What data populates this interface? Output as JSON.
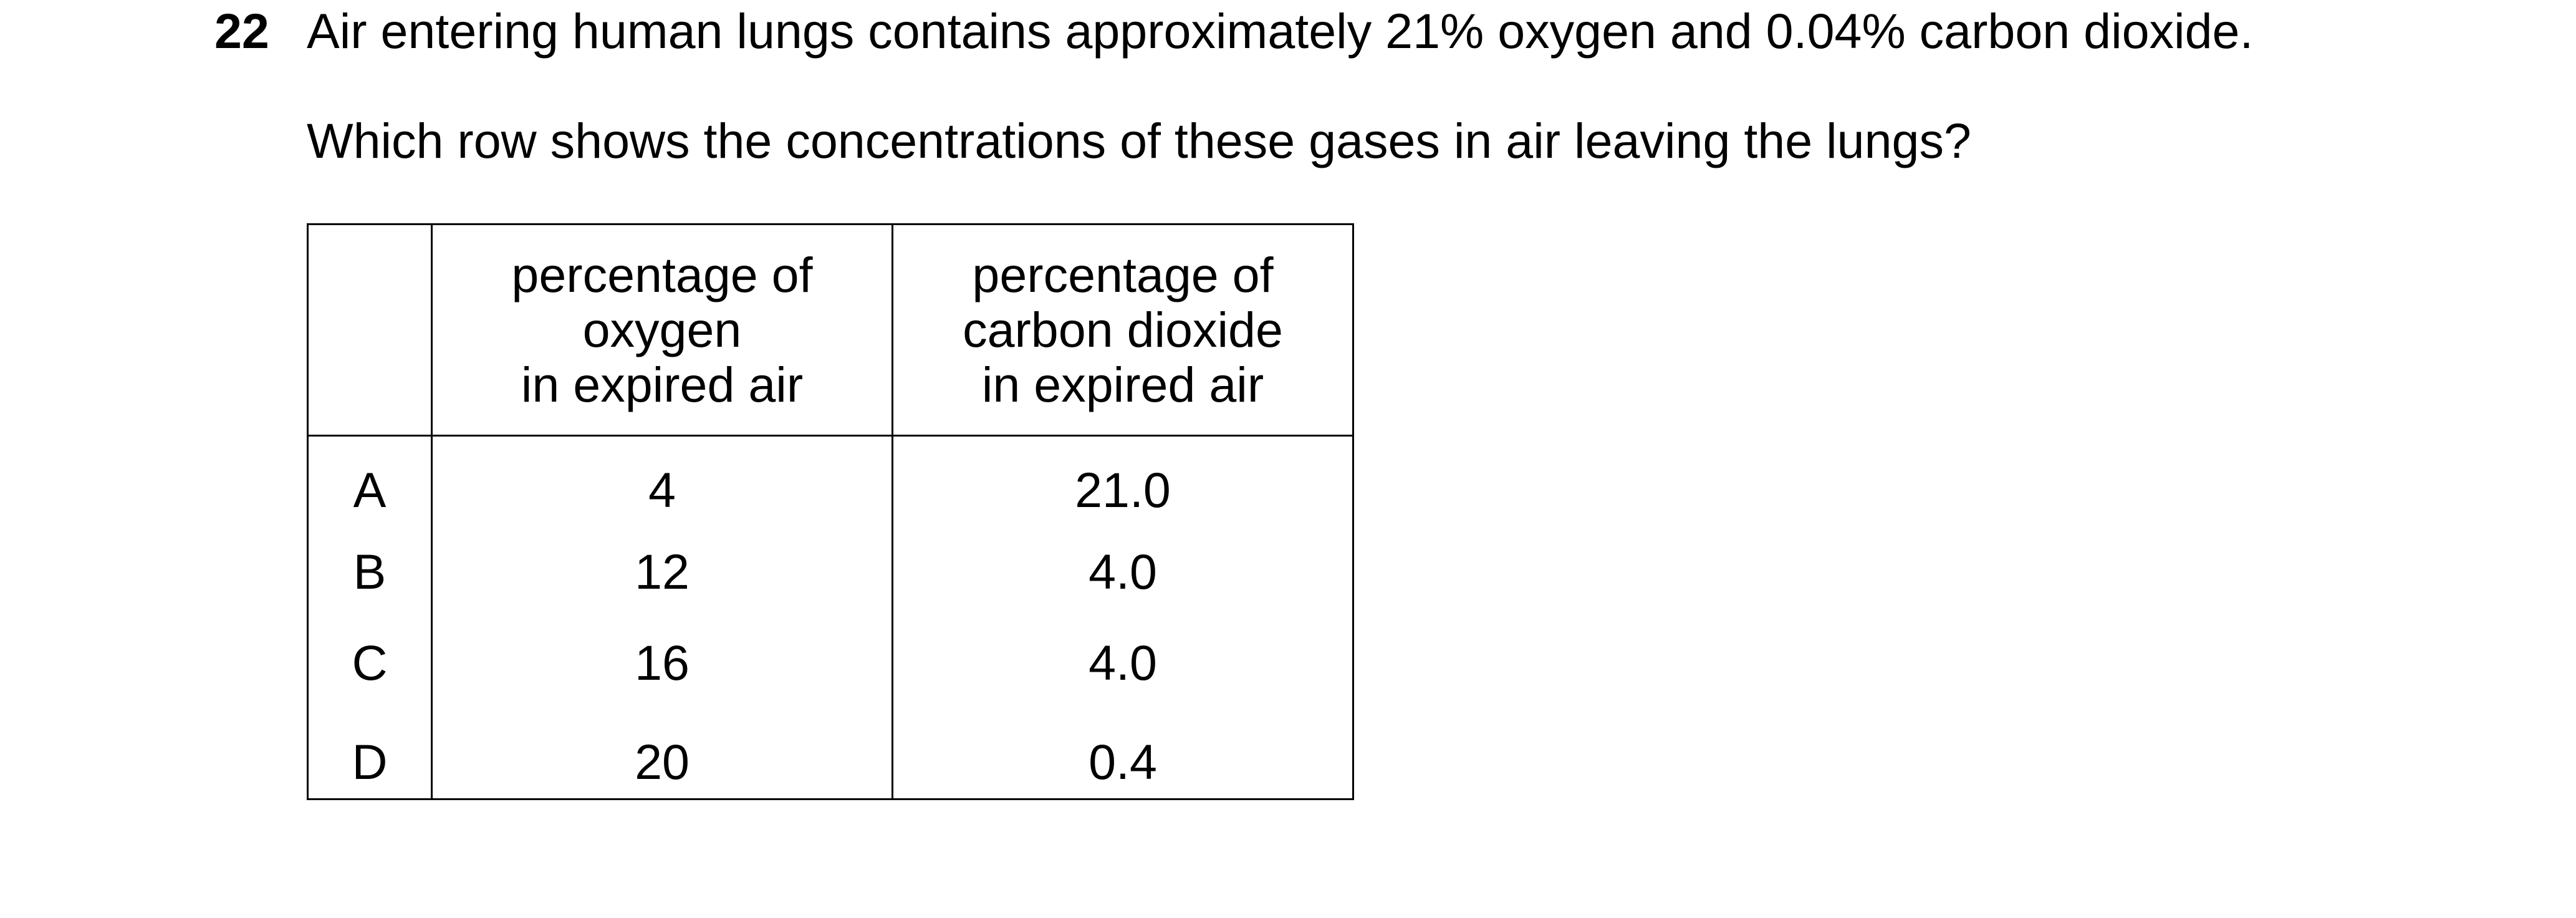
{
  "question": {
    "number": "22",
    "stem": "Air entering human lungs contains approximately 21% oxygen and 0.04% carbon dioxide.",
    "prompt": "Which row shows the concentrations of these gases in air leaving the lungs?"
  },
  "table": {
    "headers": {
      "letter": "",
      "oxygen": [
        "percentage of",
        "oxygen",
        "in expired air"
      ],
      "carbon_dioxide": [
        "percentage of",
        "carbon dioxide",
        "in expired air"
      ]
    },
    "rows": [
      {
        "letter": "A",
        "oxygen": "4",
        "carbon_dioxide": "21.0"
      },
      {
        "letter": "B",
        "oxygen": "12",
        "carbon_dioxide": "4.0"
      },
      {
        "letter": "C",
        "oxygen": "16",
        "carbon_dioxide": "4.0"
      },
      {
        "letter": "D",
        "oxygen": "20",
        "carbon_dioxide": "0.4"
      }
    ]
  }
}
